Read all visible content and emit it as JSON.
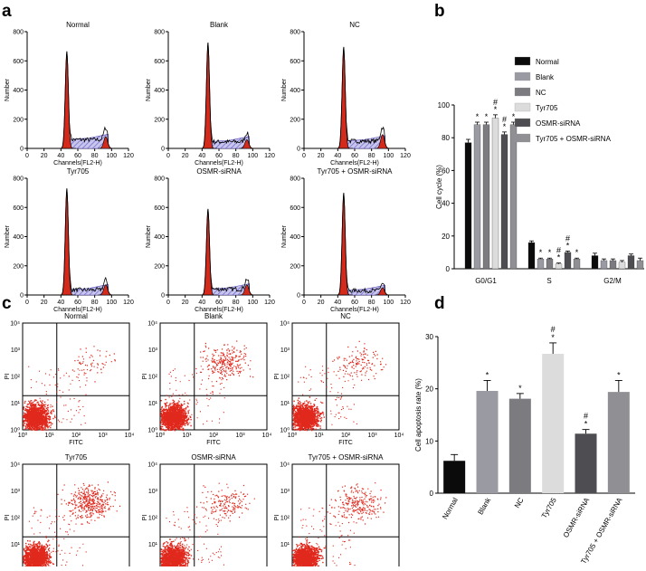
{
  "panel_letters": [
    "a",
    "b",
    "c",
    "d"
  ],
  "panel_a": {
    "axis_xlabel": "Channels(FL2-H)",
    "axis_ylabel": "Number",
    "xticks": [
      "0",
      "20",
      "40",
      "60",
      "80",
      "100",
      "120"
    ],
    "yticks": [
      "0",
      "200",
      "400",
      "600",
      "800"
    ],
    "plots": [
      {
        "title": "Normal",
        "g1_peak": 665,
        "s_level": 60,
        "g2_peak": 80
      },
      {
        "title": "Blank",
        "g1_peak": 725,
        "s_level": 45,
        "g2_peak": 60
      },
      {
        "title": "NC",
        "g1_peak": 695,
        "s_level": 50,
        "g2_peak": 95
      },
      {
        "title": "Tyr705",
        "g1_peak": 730,
        "s_level": 35,
        "g2_peak": 70
      },
      {
        "title": "OSMR-siRNA",
        "g1_peak": 590,
        "s_level": 40,
        "g2_peak": 70
      },
      {
        "title": "Tyr705 + OSMR-siRNA",
        "g1_peak": 700,
        "s_level": 30,
        "g2_peak": 50
      }
    ]
  },
  "panel_c": {
    "axis_xlabel": "FITC",
    "axis_ylabel": "PI",
    "xticks": [
      "10⁰",
      "10¹",
      "10²",
      "10³",
      "10⁴"
    ],
    "yticks": [
      "10⁰",
      "10¹",
      "10²",
      "10³",
      "10⁴"
    ],
    "plots": [
      {
        "title": "Normal",
        "density": 60
      },
      {
        "title": "Blank",
        "density": 260
      },
      {
        "title": "NC",
        "density": 130
      },
      {
        "title": "Tyr705",
        "density": 380
      },
      {
        "title": "OSMR-siRNA",
        "density": 170
      },
      {
        "title": "Tyr705 + OSMR-siRNA",
        "density": 250
      }
    ]
  },
  "chart_data": [
    {
      "type": "bar",
      "panel": "b",
      "ylabel": "Cell cycle (%)",
      "ylim": [
        0,
        100
      ],
      "yticks": [
        0,
        20,
        40,
        60,
        80,
        100
      ],
      "categories": [
        "G0/G1",
        "S",
        "G2/M"
      ],
      "series": [
        {
          "name": "Normal",
          "color": "#0b0b0b",
          "values": [
            77,
            16,
            8
          ],
          "errors": [
            2,
            1,
            1.5
          ],
          "marks": [
            "",
            "",
            ""
          ]
        },
        {
          "name": "Blank",
          "color": "#9a9aa3",
          "values": [
            88,
            6,
            5
          ],
          "errors": [
            1.5,
            0.5,
            1
          ],
          "marks": [
            "*",
            "*",
            ""
          ]
        },
        {
          "name": "NC",
          "color": "#7b7b80",
          "values": [
            88,
            6,
            5
          ],
          "errors": [
            1.5,
            0.5,
            1
          ],
          "marks": [
            "*",
            "*",
            ""
          ]
        },
        {
          "name": "Tyr705",
          "color": "#dcdcdc",
          "values": [
            92,
            3,
            4
          ],
          "errors": [
            2,
            0.5,
            1
          ],
          "marks": [
            "#\n*",
            "#\n*",
            ""
          ]
        },
        {
          "name": "OSMR-siRNA",
          "color": "#4d4d52",
          "values": [
            82,
            10,
            8
          ],
          "errors": [
            1.5,
            0.8,
            1
          ],
          "marks": [
            "#\n*",
            "#\n*",
            ""
          ]
        },
        {
          "name": "Tyr705 + OSMR-siRNA",
          "color": "#8f8f94",
          "values": [
            88,
            6,
            5
          ],
          "errors": [
            1.5,
            0.5,
            1.5
          ],
          "marks": [
            "*",
            "*",
            ""
          ]
        }
      ]
    },
    {
      "type": "bar",
      "panel": "d",
      "ylabel": "Cell apoptosis rate (%)",
      "ylim": [
        0,
        30
      ],
      "yticks": [
        0,
        10,
        20,
        30
      ],
      "categories": [
        "Normal",
        "Blank",
        "NC",
        "Tyr705",
        "OSMR-siRNA",
        "Tyr705 + OSMR-siRNA"
      ],
      "values": [
        6.2,
        19.6,
        18.1,
        26.7,
        11.4,
        19.4
      ],
      "errors": [
        1.2,
        2.0,
        1.0,
        2.1,
        0.8,
        2.2
      ],
      "marks": [
        "",
        "*",
        "*",
        "#\n*",
        "#\n*",
        "*"
      ],
      "colors": [
        "#0b0b0b",
        "#9a9aa3",
        "#7b7b80",
        "#dcdcdc",
        "#4d4d52",
        "#8f8f94"
      ]
    }
  ]
}
